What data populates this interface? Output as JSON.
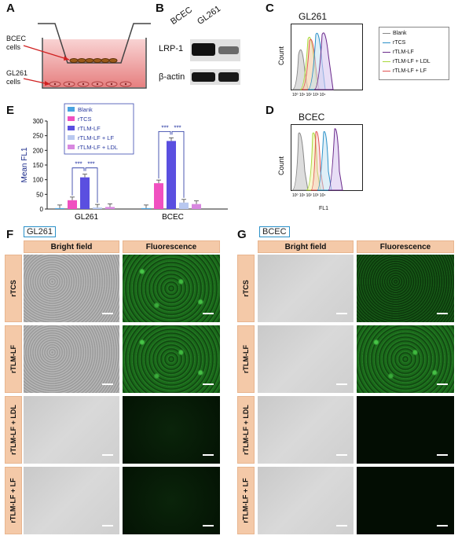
{
  "panels": {
    "a": "A",
    "b": "B",
    "c": "C",
    "d": "D",
    "e": "E",
    "f": "F",
    "g": "G"
  },
  "panelA": {
    "bcec_label": "BCEC\ncells",
    "gl261_label": "GL261\ncells"
  },
  "panelB": {
    "col1": "BCEC",
    "col2": "GL261",
    "row1": "LRP-1",
    "row2": "β-actin"
  },
  "panelC": {
    "title": "GL261",
    "ylabel": "Count",
    "legend": [
      "Blank",
      "rTCS",
      "rTLM-LF",
      "rTLM-LF + LDL",
      "rTLM-LF + LF"
    ],
    "ticks": [
      "10⁰",
      "10¹",
      "10²",
      "10³",
      "10⁴"
    ]
  },
  "panelD": {
    "title": "BCEC",
    "ylabel": "Count",
    "xlabel": "FL1",
    "ticks": [
      "10⁰",
      "10¹",
      "10²",
      "10³",
      "10⁴"
    ]
  },
  "colors": {
    "blank": "#888888",
    "rtcs": "#2a90c8",
    "rtlmlf": "#6a2a8a",
    "ldl": "#a8d83a",
    "lf": "#e05050",
    "bar_blank": "#4aa3e0",
    "bar_rtcs": "#f050c0",
    "bar_rtlmlf": "#5a4fe0",
    "bar_lf": "#b8c8f0",
    "bar_ldl": "#d888e0",
    "header": "#f4c9a8",
    "sig": "#2030a0"
  },
  "chart_data": {
    "type": "bar",
    "title": "",
    "ylabel": "Mean FL1",
    "ylim": [
      0,
      300
    ],
    "yticks": [
      0,
      50,
      100,
      150,
      200,
      250,
      300
    ],
    "categories": [
      "GL261",
      "BCEC"
    ],
    "series": [
      {
        "name": "Blank",
        "values": [
          3,
          3
        ]
      },
      {
        "name": "rTCS",
        "values": [
          30,
          88
        ]
      },
      {
        "name": "rTLM-LF",
        "values": [
          108,
          232
        ]
      },
      {
        "name": "rTLM-LF + LF",
        "values": [
          5,
          22
        ]
      },
      {
        "name": "rTLM-LF + LDL",
        "values": [
          7,
          17
        ]
      }
    ],
    "significance": [
      "***",
      "***",
      "***",
      "***"
    ],
    "legend_position": "top"
  },
  "panelF": {
    "badge": "GL261",
    "col1": "Bright field",
    "col2": "Fluorescence",
    "rows": [
      "rTCS",
      "rTLM-LF",
      "rTLM-LF + LDL",
      "rTLM-LF + LF"
    ]
  },
  "panelG": {
    "badge": "BCEC",
    "col1": "Bright field",
    "col2": "Fluorescence",
    "rows": [
      "rTCS",
      "rTLM-LF",
      "rTLM-LF + LDL",
      "rTLM-LF + LF"
    ]
  }
}
